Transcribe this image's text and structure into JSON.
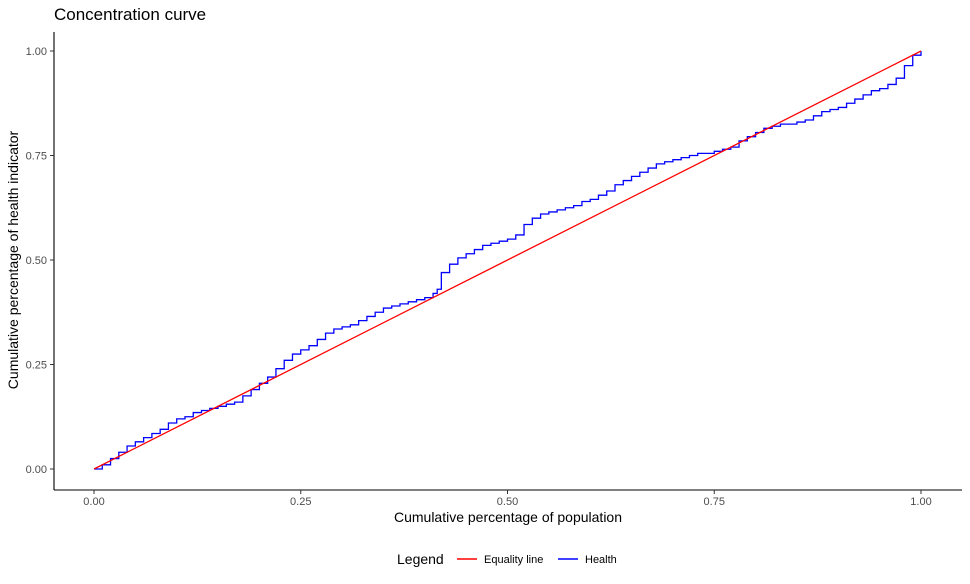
{
  "chart_data": {
    "type": "line",
    "title": "Concentration curve",
    "xlabel": "Cumulative percentage of population",
    "ylabel": "Cumulative percentage of health indicator",
    "xlim": [
      0,
      1
    ],
    "ylim": [
      0,
      1
    ],
    "x_ticks": [
      "0.00",
      "0.25",
      "0.50",
      "0.75",
      "1.00"
    ],
    "y_ticks": [
      "0.00",
      "0.25",
      "0.50",
      "0.75",
      "1.00"
    ],
    "grid": false,
    "legend": {
      "title": "Legend",
      "position": "bottom"
    },
    "series": [
      {
        "name": "Equality line",
        "color": "#ff0000",
        "x": [
          0,
          1
        ],
        "y": [
          0,
          1
        ]
      },
      {
        "name": "Health",
        "color": "#0000ff",
        "step": true,
        "x": [
          0,
          0.01,
          0.02,
          0.03,
          0.04,
          0.05,
          0.06,
          0.07,
          0.08,
          0.09,
          0.1,
          0.11,
          0.12,
          0.13,
          0.14,
          0.15,
          0.16,
          0.17,
          0.18,
          0.19,
          0.2,
          0.21,
          0.22,
          0.23,
          0.24,
          0.25,
          0.26,
          0.27,
          0.28,
          0.29,
          0.3,
          0.31,
          0.32,
          0.33,
          0.34,
          0.35,
          0.36,
          0.37,
          0.38,
          0.39,
          0.4,
          0.41,
          0.415,
          0.42,
          0.43,
          0.44,
          0.45,
          0.46,
          0.47,
          0.48,
          0.49,
          0.5,
          0.51,
          0.52,
          0.53,
          0.54,
          0.55,
          0.56,
          0.57,
          0.58,
          0.59,
          0.6,
          0.61,
          0.62,
          0.63,
          0.64,
          0.65,
          0.66,
          0.67,
          0.68,
          0.69,
          0.7,
          0.71,
          0.72,
          0.73,
          0.74,
          0.75,
          0.76,
          0.77,
          0.78,
          0.79,
          0.8,
          0.81,
          0.82,
          0.83,
          0.84,
          0.85,
          0.86,
          0.87,
          0.88,
          0.89,
          0.9,
          0.91,
          0.92,
          0.93,
          0.94,
          0.95,
          0.96,
          0.97,
          0.98,
          0.99,
          1.0
        ],
        "y": [
          0,
          0.01,
          0.025,
          0.04,
          0.055,
          0.065,
          0.075,
          0.085,
          0.095,
          0.11,
          0.12,
          0.125,
          0.135,
          0.14,
          0.145,
          0.15,
          0.155,
          0.16,
          0.175,
          0.19,
          0.205,
          0.22,
          0.24,
          0.26,
          0.275,
          0.285,
          0.295,
          0.31,
          0.325,
          0.335,
          0.34,
          0.345,
          0.355,
          0.365,
          0.375,
          0.385,
          0.39,
          0.395,
          0.4,
          0.405,
          0.41,
          0.42,
          0.43,
          0.47,
          0.49,
          0.505,
          0.515,
          0.525,
          0.535,
          0.54,
          0.545,
          0.55,
          0.56,
          0.585,
          0.6,
          0.61,
          0.615,
          0.62,
          0.625,
          0.63,
          0.64,
          0.645,
          0.655,
          0.665,
          0.68,
          0.69,
          0.7,
          0.71,
          0.72,
          0.73,
          0.735,
          0.74,
          0.745,
          0.75,
          0.755,
          0.755,
          0.76,
          0.765,
          0.77,
          0.785,
          0.795,
          0.805,
          0.815,
          0.82,
          0.825,
          0.825,
          0.83,
          0.835,
          0.845,
          0.855,
          0.86,
          0.865,
          0.875,
          0.885,
          0.895,
          0.905,
          0.91,
          0.92,
          0.935,
          0.965,
          0.99,
          1.0
        ]
      }
    ]
  }
}
